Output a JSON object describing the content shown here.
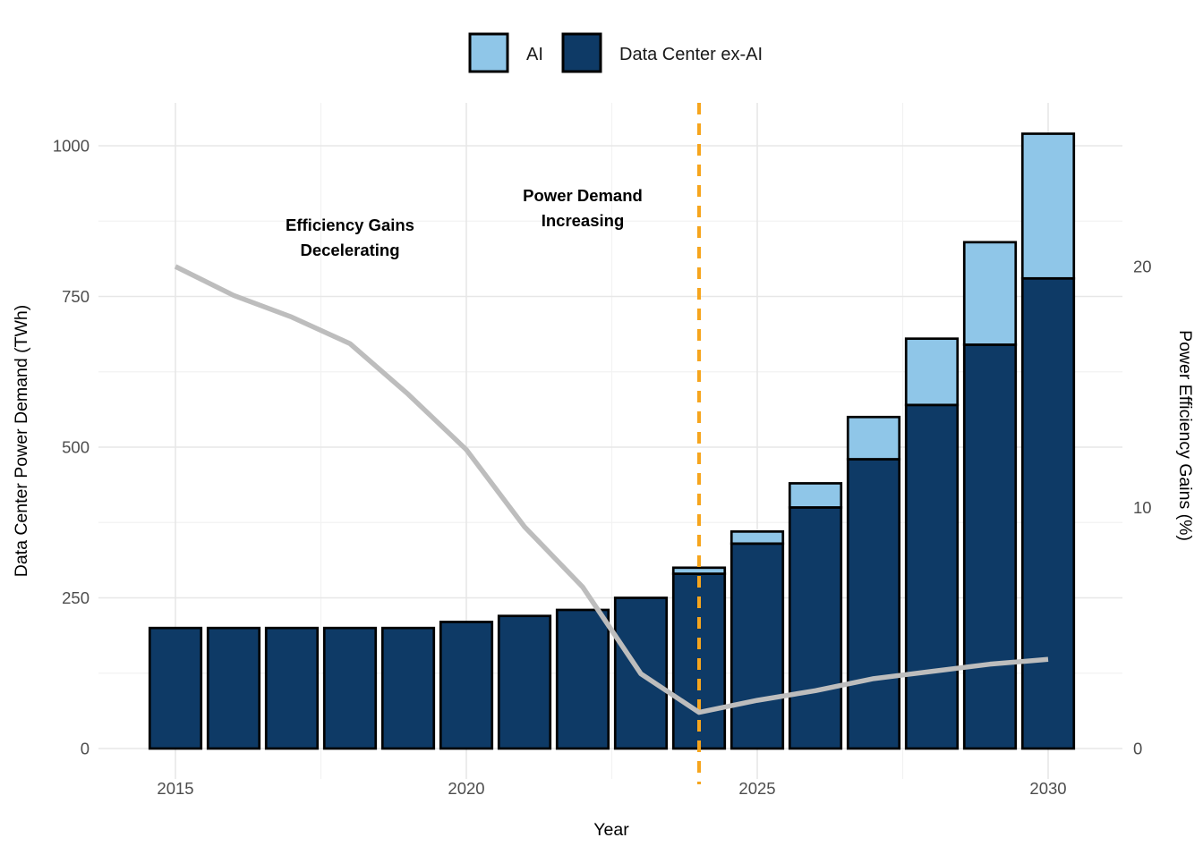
{
  "chart_data": {
    "type": "bar",
    "subtype": "stacked-bars-with-line-overlay-dual-axis",
    "x": [
      2015,
      2016,
      2017,
      2018,
      2019,
      2020,
      2021,
      2022,
      2023,
      2024,
      2025,
      2026,
      2027,
      2028,
      2029,
      2030
    ],
    "series": [
      {
        "name": "AI",
        "type": "bar",
        "axis": "left",
        "color": "#8FC6E8",
        "values": [
          0,
          0,
          0,
          0,
          0,
          0,
          0,
          0,
          0,
          10,
          20,
          40,
          70,
          110,
          170,
          240
        ]
      },
      {
        "name": "Data Center ex-AI",
        "type": "bar",
        "axis": "left",
        "color": "#0E3A66",
        "values": [
          200,
          200,
          200,
          200,
          200,
          210,
          220,
          230,
          250,
          290,
          340,
          400,
          480,
          570,
          670,
          780
        ]
      },
      {
        "name": "Power Efficiency Gains",
        "type": "line",
        "axis": "right",
        "color": "#BDBDBD",
        "values": [
          20,
          18.8,
          17.9,
          16.8,
          14.7,
          12.4,
          9.2,
          6.7,
          3.1,
          1.5,
          2.0,
          2.4,
          2.9,
          3.2,
          3.5,
          3.7
        ]
      }
    ],
    "stacking": "AI stacked on top of Data Center ex-AI",
    "title": "",
    "xlabel": "Year",
    "ylabel_left": "Data Center Power Demand (TWh)",
    "ylabel_right": "Power Efficiency Gains (%)",
    "x_ticks": [
      2015,
      2020,
      2025,
      2030
    ],
    "y_ticks_left": [
      0,
      250,
      500,
      750,
      1000
    ],
    "y_ticks_right": [
      0,
      10,
      20
    ],
    "xlim": [
      2013.7,
      2031.3
    ],
    "ylim_left": [
      -50,
      1070
    ],
    "ylim_right": [
      -1.3,
      26.8
    ],
    "right_axis_twh_per_percent": 40,
    "grid": true,
    "legend_position": "top-center",
    "vline": {
      "x": 2024,
      "style": "dashed",
      "color": "#F6A51D"
    },
    "annotations": [
      {
        "lines": [
          "Efficiency Gains",
          "Decelerating"
        ],
        "x": 2018.0,
        "y_twh": 868
      },
      {
        "lines": [
          "Power Demand",
          "Increasing"
        ],
        "x": 2022.0,
        "y_twh": 917
      }
    ]
  },
  "legend": {
    "ai_label": "AI",
    "ex_ai_label": "Data Center ex-AI"
  },
  "axes": {
    "x_title": "Year",
    "y_left_title": "Data Center Power Demand (TWh)",
    "y_right_title": "Power Efficiency Gains (%)"
  },
  "colors": {
    "background": "#FFFFFF",
    "bar_ai": "#8FC6E8",
    "bar_ex_ai": "#0E3A66",
    "bar_outline": "#000000",
    "efficiency_line": "#BDBDBD",
    "vline_orange": "#F6A51D",
    "gridline_major": "#E7E7E7",
    "gridline_minor": "#F2F2F2",
    "tick_text": "#4D4D4D"
  }
}
